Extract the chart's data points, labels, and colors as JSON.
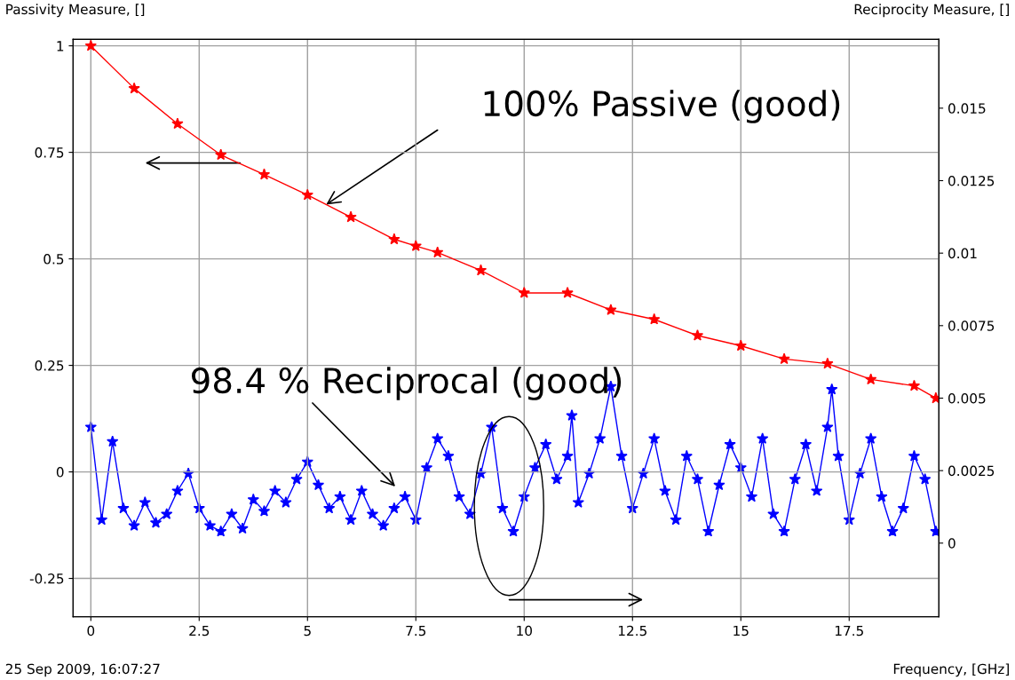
{
  "chart_data": {
    "type": "line",
    "ylabel": "Passivity Measure, []",
    "y2label": "Reciprocity Measure, []",
    "xlabel": "Frequency, [GHz]",
    "annotations": [
      "100% Passive (good)",
      "98.4 % Reciprocal (good)",
      "25 Sep 2009, 16:07:27"
    ],
    "xlim": [
      -0.41,
      19.57
    ],
    "ylim": [
      -0.34,
      1.015
    ],
    "y2lim": [
      -0.00254,
      0.01737
    ],
    "xticks": [
      0,
      2.5,
      5,
      7.5,
      10,
      12.5,
      15,
      17.5
    ],
    "yticks": [
      -0.25,
      0,
      0.25,
      0.5,
      0.75,
      1
    ],
    "y2ticks": [
      0,
      0.0025,
      0.005,
      0.0075,
      0.01,
      0.0125,
      0.015
    ],
    "grid": true,
    "marker": "star",
    "line_style": "solid",
    "series": [
      {
        "color": "#ff0000",
        "x": [
          0,
          1,
          2,
          3,
          4,
          5,
          6,
          7,
          7.5,
          8,
          9,
          10,
          11,
          12,
          13,
          14,
          15,
          16,
          17,
          18,
          19,
          19.5
        ],
        "values": [
          1.0,
          0.9,
          0.817,
          0.744,
          0.698,
          0.65,
          0.598,
          0.546,
          0.53,
          0.515,
          0.473,
          0.42,
          0.42,
          0.38,
          0.358,
          0.32,
          0.296,
          0.265,
          0.254,
          0.217,
          0.202,
          0.173
        ]
      },
      {
        "color": "#0000ff",
        "axis": "y2",
        "x": [
          0,
          0.25,
          0.5,
          0.75,
          1.0,
          1.25,
          1.5,
          1.75,
          2.0,
          2.25,
          2.5,
          2.75,
          3.0,
          3.25,
          3.5,
          3.75,
          4.0,
          4.25,
          4.5,
          4.75,
          5.0,
          5.25,
          5.5,
          5.75,
          6.0,
          6.25,
          6.5,
          6.75,
          7.0,
          7.25,
          7.5,
          7.75,
          8.0,
          8.25,
          8.5,
          8.75,
          9.0,
          9.25,
          9.5,
          9.75,
          10.0,
          10.25,
          10.5,
          10.75,
          11.0,
          11.1,
          11.25,
          11.5,
          11.75,
          12.0,
          12.25,
          12.5,
          12.75,
          13.0,
          13.25,
          13.5,
          13.75,
          14.0,
          14.25,
          14.5,
          14.75,
          15.0,
          15.25,
          15.5,
          15.75,
          16.0,
          16.25,
          16.5,
          16.75,
          17.0,
          17.1,
          17.25,
          17.5,
          17.75,
          18.0,
          18.25,
          18.5,
          18.75,
          19.0,
          19.25,
          19.5
        ],
        "values": [
          0.004,
          0.0008,
          0.0035,
          0.0012,
          0.0006,
          0.0014,
          0.0007,
          0.001,
          0.0018,
          0.0024,
          0.0012,
          0.0006,
          0.0004,
          0.001,
          0.0005,
          0.0015,
          0.0011,
          0.0018,
          0.0014,
          0.0022,
          0.0028,
          0.002,
          0.0012,
          0.0016,
          0.0008,
          0.0018,
          0.001,
          0.0006,
          0.0012,
          0.0016,
          0.0008,
          0.0026,
          0.0036,
          0.003,
          0.0016,
          0.001,
          0.0024,
          0.004,
          0.0012,
          0.0004,
          0.0016,
          0.0026,
          0.0034,
          0.0022,
          0.003,
          0.0044,
          0.0014,
          0.0024,
          0.0036,
          0.0054,
          0.003,
          0.0012,
          0.0024,
          0.0036,
          0.0018,
          0.0008,
          0.003,
          0.0022,
          0.0004,
          0.002,
          0.0034,
          0.0026,
          0.0016,
          0.0036,
          0.001,
          0.0004,
          0.0022,
          0.0034,
          0.0018,
          0.004,
          0.0053,
          0.003,
          0.0008,
          0.0024,
          0.0036,
          0.0016,
          0.0004,
          0.0012,
          0.003,
          0.0022,
          0.0004
        ]
      }
    ]
  }
}
